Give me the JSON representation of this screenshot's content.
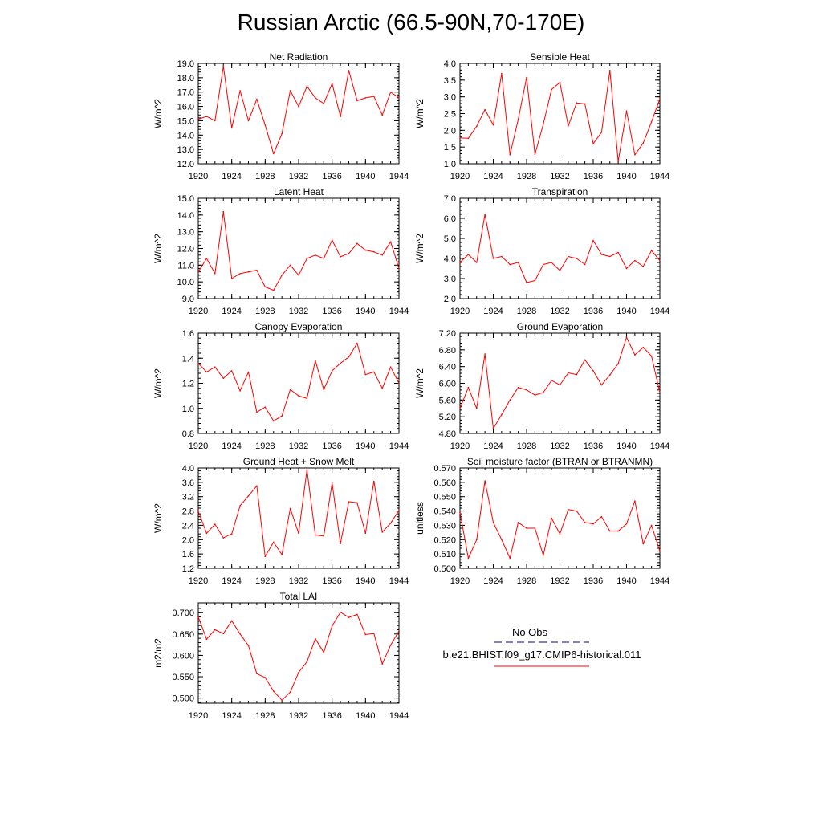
{
  "title": "Russian Arctic (66.5-90N,70-170E)",
  "colors": {
    "model": "#ff0000",
    "obs": "#00008b",
    "axis": "#000000"
  },
  "legend": {
    "obs_label": "No Obs",
    "model_label": "b.e21.BHIST.f09_g17.CMIP6-historical.011"
  },
  "chart_data": [
    {
      "type": "line",
      "title": "Net Radiation",
      "ylabel": "W/m^2",
      "x": [
        1920,
        1921,
        1922,
        1923,
        1924,
        1925,
        1926,
        1927,
        1928,
        1929,
        1930,
        1931,
        1932,
        1933,
        1934,
        1935,
        1936,
        1937,
        1938,
        1939,
        1940,
        1941,
        1942,
        1943,
        1944
      ],
      "xticks": [
        1920,
        1924,
        1928,
        1932,
        1936,
        1940,
        1944
      ],
      "ylim": [
        12.0,
        19.0
      ],
      "yticks": [
        "12.0",
        "13.0",
        "14.0",
        "15.0",
        "16.0",
        "17.0",
        "18.0",
        "19.0"
      ],
      "series": [
        {
          "values": [
            15.1,
            15.3,
            15.0,
            18.8,
            14.5,
            17.1,
            15.0,
            16.5,
            14.7,
            12.7,
            14.1,
            17.1,
            16.0,
            17.4,
            16.6,
            16.2,
            17.6,
            15.3,
            18.5,
            16.4,
            16.6,
            16.7,
            15.4,
            17.0,
            16.6
          ]
        }
      ]
    },
    {
      "type": "line",
      "title": "Sensible Heat",
      "ylabel": "W/m^2",
      "x": [
        1920,
        1921,
        1922,
        1923,
        1924,
        1925,
        1926,
        1927,
        1928,
        1929,
        1930,
        1931,
        1932,
        1933,
        1934,
        1935,
        1936,
        1937,
        1938,
        1939,
        1940,
        1941,
        1942,
        1943,
        1944
      ],
      "xticks": [
        1920,
        1924,
        1928,
        1932,
        1936,
        1940,
        1944
      ],
      "ylim": [
        1.0,
        4.0
      ],
      "yticks": [
        "1.0",
        "1.5",
        "2.0",
        "2.5",
        "3.0",
        "3.5",
        "4.0"
      ],
      "series": [
        {
          "values": [
            1.77,
            1.76,
            2.12,
            2.62,
            2.16,
            3.7,
            1.27,
            2.33,
            3.58,
            1.28,
            2.18,
            3.22,
            3.43,
            2.13,
            2.82,
            2.79,
            1.6,
            1.94,
            3.79,
            1.07,
            2.58,
            1.27,
            1.62,
            2.25,
            2.94
          ]
        }
      ]
    },
    {
      "type": "line",
      "title": "Latent Heat",
      "ylabel": "W/m^2",
      "x": [
        1920,
        1921,
        1922,
        1923,
        1924,
        1925,
        1926,
        1927,
        1928,
        1929,
        1930,
        1931,
        1932,
        1933,
        1934,
        1935,
        1936,
        1937,
        1938,
        1939,
        1940,
        1941,
        1942,
        1943,
        1944
      ],
      "xticks": [
        1920,
        1924,
        1928,
        1932,
        1936,
        1940,
        1944
      ],
      "ylim": [
        9.0,
        15.0
      ],
      "yticks": [
        "9.0",
        "10.0",
        "11.0",
        "12.0",
        "13.0",
        "14.0",
        "15.0"
      ],
      "series": [
        {
          "values": [
            10.6,
            11.4,
            10.5,
            14.2,
            10.2,
            10.5,
            10.6,
            10.7,
            9.7,
            9.5,
            10.4,
            11.0,
            10.4,
            11.4,
            11.6,
            11.4,
            12.5,
            11.5,
            11.7,
            12.3,
            11.9,
            11.8,
            11.6,
            12.4,
            10.8
          ]
        }
      ]
    },
    {
      "type": "line",
      "title": "Transpiration",
      "ylabel": "W/m^2",
      "x": [
        1920,
        1921,
        1922,
        1923,
        1924,
        1925,
        1926,
        1927,
        1928,
        1929,
        1930,
        1931,
        1932,
        1933,
        1934,
        1935,
        1936,
        1937,
        1938,
        1939,
        1940,
        1941,
        1942,
        1943,
        1944
      ],
      "xticks": [
        1920,
        1924,
        1928,
        1932,
        1936,
        1940,
        1944
      ],
      "ylim": [
        2.0,
        7.0
      ],
      "yticks": [
        "2.0",
        "3.0",
        "4.0",
        "5.0",
        "6.0",
        "7.0"
      ],
      "series": [
        {
          "values": [
            3.8,
            4.2,
            3.8,
            6.2,
            4.0,
            4.1,
            3.7,
            3.8,
            2.8,
            2.9,
            3.7,
            3.8,
            3.4,
            4.1,
            4.0,
            3.7,
            4.9,
            4.2,
            4.1,
            4.3,
            3.5,
            3.9,
            3.6,
            4.4,
            3.9
          ]
        }
      ]
    },
    {
      "type": "line",
      "title": "Canopy Evaporation",
      "ylabel": "W/m^2",
      "x": [
        1920,
        1921,
        1922,
        1923,
        1924,
        1925,
        1926,
        1927,
        1928,
        1929,
        1930,
        1931,
        1932,
        1933,
        1934,
        1935,
        1936,
        1937,
        1938,
        1939,
        1940,
        1941,
        1942,
        1943,
        1944
      ],
      "xticks": [
        1920,
        1924,
        1928,
        1932,
        1936,
        1940,
        1944
      ],
      "ylim": [
        0.8,
        1.6
      ],
      "yticks": [
        "0.8",
        "1.0",
        "1.2",
        "1.4",
        "1.6"
      ],
      "series": [
        {
          "values": [
            1.36,
            1.29,
            1.33,
            1.24,
            1.3,
            1.14,
            1.29,
            0.97,
            1.01,
            0.9,
            0.94,
            1.15,
            1.1,
            1.08,
            1.38,
            1.15,
            1.3,
            1.36,
            1.41,
            1.52,
            1.27,
            1.29,
            1.16,
            1.33,
            1.2
          ]
        }
      ]
    },
    {
      "type": "line",
      "title": "Ground Evaporation",
      "ylabel": "W/m^2",
      "x": [
        1920,
        1921,
        1922,
        1923,
        1924,
        1925,
        1926,
        1927,
        1928,
        1929,
        1930,
        1931,
        1932,
        1933,
        1934,
        1935,
        1936,
        1937,
        1938,
        1939,
        1940,
        1941,
        1942,
        1943,
        1944
      ],
      "xticks": [
        1920,
        1924,
        1928,
        1932,
        1936,
        1940,
        1944
      ],
      "ylim": [
        4.8,
        7.2
      ],
      "yticks": [
        "4.80",
        "5.20",
        "5.60",
        "6.00",
        "6.40",
        "6.80",
        "7.20"
      ],
      "series": [
        {
          "values": [
            5.4,
            5.9,
            5.4,
            6.7,
            4.92,
            5.25,
            5.6,
            5.9,
            5.84,
            5.72,
            5.78,
            6.07,
            5.96,
            6.25,
            6.21,
            6.56,
            6.3,
            5.96,
            6.2,
            6.47,
            7.1,
            6.68,
            6.86,
            6.65,
            5.78
          ]
        }
      ]
    },
    {
      "type": "line",
      "title": "Ground Heat + Snow Melt",
      "ylabel": "W/m^2",
      "x": [
        1920,
        1921,
        1922,
        1923,
        1924,
        1925,
        1926,
        1927,
        1928,
        1929,
        1930,
        1931,
        1932,
        1933,
        1934,
        1935,
        1936,
        1937,
        1938,
        1939,
        1940,
        1941,
        1942,
        1943,
        1944
      ],
      "xticks": [
        1920,
        1924,
        1928,
        1932,
        1936,
        1940,
        1944
      ],
      "ylim": [
        1.2,
        4.0
      ],
      "yticks": [
        "1.2",
        "1.6",
        "2.0",
        "2.4",
        "2.8",
        "3.2",
        "3.6",
        "4.0"
      ],
      "series": [
        {
          "values": [
            2.79,
            2.18,
            2.43,
            2.05,
            2.16,
            2.95,
            3.22,
            3.5,
            1.53,
            1.93,
            1.58,
            2.87,
            2.18,
            3.95,
            2.13,
            2.1,
            3.58,
            1.89,
            3.06,
            3.03,
            2.18,
            3.63,
            2.21,
            2.46,
            2.82
          ]
        }
      ]
    },
    {
      "type": "line",
      "title": "Soil moisture factor (BTRAN or BTRANMN)",
      "ylabel": "unitless",
      "x": [
        1920,
        1921,
        1922,
        1923,
        1924,
        1925,
        1926,
        1927,
        1928,
        1929,
        1930,
        1931,
        1932,
        1933,
        1934,
        1935,
        1936,
        1937,
        1938,
        1939,
        1940,
        1941,
        1942,
        1943,
        1944
      ],
      "xticks": [
        1920,
        1924,
        1928,
        1932,
        1936,
        1940,
        1944
      ],
      "ylim": [
        0.5,
        0.57
      ],
      "yticks": [
        "0.500",
        "0.510",
        "0.520",
        "0.530",
        "0.540",
        "0.550",
        "0.560",
        "0.570"
      ],
      "series": [
        {
          "values": [
            0.539,
            0.507,
            0.52,
            0.561,
            0.532,
            0.52,
            0.507,
            0.532,
            0.528,
            0.528,
            0.509,
            0.535,
            0.524,
            0.541,
            0.54,
            0.532,
            0.531,
            0.536,
            0.526,
            0.526,
            0.531,
            0.547,
            0.517,
            0.53,
            0.512
          ]
        }
      ]
    },
    {
      "type": "line",
      "title": "Total LAI",
      "ylabel": "m2/m2",
      "x": [
        1920,
        1921,
        1922,
        1923,
        1924,
        1925,
        1926,
        1927,
        1928,
        1929,
        1930,
        1931,
        1932,
        1933,
        1934,
        1935,
        1936,
        1937,
        1938,
        1939,
        1940,
        1941,
        1942,
        1943,
        1944
      ],
      "xticks": [
        1920,
        1924,
        1928,
        1932,
        1936,
        1940,
        1944
      ],
      "ylim": [
        0.488,
        0.723
      ],
      "yticks": [
        "0.500",
        "0.550",
        "0.600",
        "0.650",
        "0.700"
      ],
      "series": [
        {
          "values": [
            0.69,
            0.638,
            0.66,
            0.651,
            0.681,
            0.65,
            0.623,
            0.557,
            0.548,
            0.516,
            0.495,
            0.514,
            0.56,
            0.585,
            0.639,
            0.607,
            0.669,
            0.701,
            0.689,
            0.696,
            0.649,
            0.651,
            0.58,
            0.624,
            0.657
          ]
        }
      ]
    }
  ]
}
